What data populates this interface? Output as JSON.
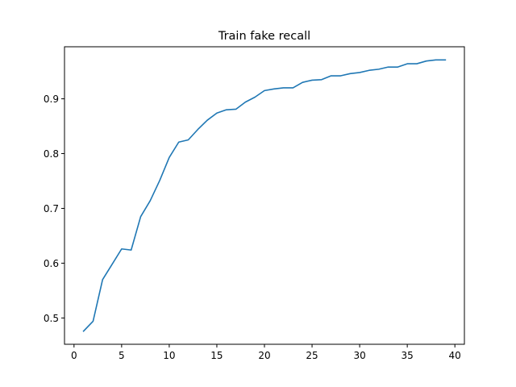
{
  "chart_data": {
    "type": "line",
    "title": "Train fake recall",
    "xlabel": "",
    "ylabel": "",
    "xlim": [
      -1,
      41
    ],
    "ylim": [
      0.452,
      0.995
    ],
    "xticks": [
      0,
      5,
      10,
      15,
      20,
      25,
      30,
      35,
      40
    ],
    "yticks": [
      0.5,
      0.6,
      0.7,
      0.8,
      0.9
    ],
    "ytick_labels": [
      "0.5",
      "0.6",
      "0.7",
      "0.8",
      "0.9"
    ],
    "grid": false,
    "series": [
      {
        "color": "#1f77b4",
        "x": [
          1,
          2,
          3,
          4,
          5,
          6,
          7,
          8,
          9,
          10,
          11,
          12,
          13,
          14,
          15,
          16,
          17,
          18,
          19,
          20,
          21,
          22,
          23,
          24,
          25,
          26,
          27,
          28,
          29,
          30,
          31,
          32,
          33,
          34,
          35,
          36,
          37,
          38,
          39
        ],
        "values": [
          0.476,
          0.494,
          0.57,
          0.598,
          0.626,
          0.624,
          0.685,
          0.714,
          0.751,
          0.793,
          0.821,
          0.825,
          0.844,
          0.861,
          0.874,
          0.88,
          0.881,
          0.894,
          0.903,
          0.915,
          0.918,
          0.92,
          0.92,
          0.93,
          0.934,
          0.935,
          0.942,
          0.942,
          0.946,
          0.948,
          0.952,
          0.954,
          0.958,
          0.958,
          0.964,
          0.964,
          0.969,
          0.971,
          0.971
        ]
      }
    ]
  }
}
